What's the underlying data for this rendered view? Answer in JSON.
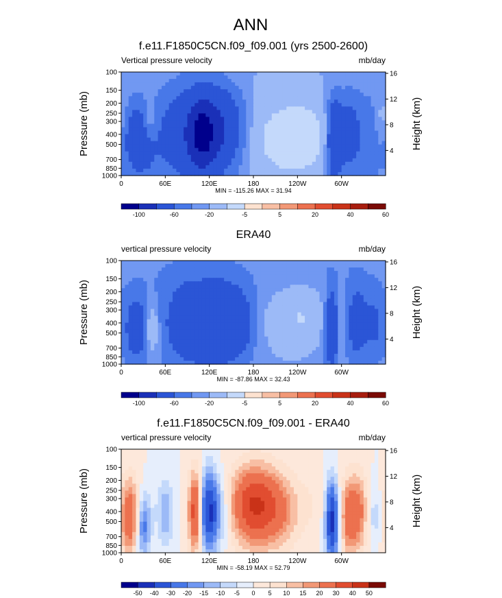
{
  "page_title": "ANN",
  "chart_data": [
    {
      "type": "heatmap",
      "title": "f.e11.F1850C5CN.f09_f09.001 (yrs 2500-2600)",
      "subtitle_left": "Vertical pressure velocity",
      "subtitle_right": "mb/day",
      "ylabel": "Pressure (mb)",
      "ylabel_right": "Height (km)",
      "x_ticks": [
        "0",
        "60E",
        "120E",
        "180",
        "120W",
        "60W"
      ],
      "y_ticks": [
        "100",
        "150",
        "200",
        "250",
        "300",
        "400",
        "500",
        "700",
        "850",
        "1000"
      ],
      "y_right_ticks": [
        "16",
        "12",
        "8",
        "4"
      ],
      "stats": "MIN = -115.26  MAX =  31.94",
      "colorbar_labels": [
        "-100",
        "-60",
        "-20",
        "-5",
        "5",
        "20",
        "40",
        "60"
      ],
      "colorbar_colors": [
        "#00008c",
        "#1a30b8",
        "#2b55d6",
        "#4878e8",
        "#7198f2",
        "#9cbaf7",
        "#c4d9fb",
        "#fde2d0",
        "#f8bfa4",
        "#f29876",
        "#ec714f",
        "#e14d30",
        "#c93218",
        "#a81d0e",
        "#7a0a05"
      ],
      "features": [
        {
          "lon": 25,
          "p": 450,
          "v": -50,
          "w": 14,
          "h": 0.5
        },
        {
          "lon": 38,
          "p": 320,
          "v": 28,
          "w": 8,
          "h": 0.35
        },
        {
          "lon": 95,
          "p": 400,
          "v": -50,
          "w": 30,
          "h": 0.7
        },
        {
          "lon": 110,
          "p": 400,
          "v": -70,
          "w": 12,
          "h": 0.6
        },
        {
          "lon": 135,
          "p": 350,
          "v": -45,
          "w": 16,
          "h": 0.6
        },
        {
          "lon": 160,
          "p": 350,
          "v": -12,
          "w": 14,
          "h": 0.6
        },
        {
          "lon": 225,
          "p": 450,
          "v": 28,
          "w": 40,
          "h": 0.7
        },
        {
          "lon": 255,
          "p": 400,
          "v": 10,
          "w": 25,
          "h": 0.6
        },
        {
          "lon": 290,
          "p": 450,
          "v": -60,
          "w": 7,
          "h": 0.6
        },
        {
          "lon": 310,
          "p": 400,
          "v": -35,
          "w": 12,
          "h": 0.6
        },
        {
          "lon": 340,
          "p": 420,
          "v": -15,
          "w": 12,
          "h": 0.6
        },
        {
          "lon": 355,
          "p": 300,
          "v": 15,
          "w": 8,
          "h": 0.4
        },
        {
          "lon": 180,
          "p": 120,
          "v": 4,
          "w": 120,
          "h": 0.25
        }
      ]
    },
    {
      "type": "heatmap",
      "title": "ERA40",
      "subtitle_left": "vertical pressure velocity",
      "subtitle_right": "mb/day",
      "ylabel": "Pressure (mb)",
      "ylabel_right": "Height (km)",
      "x_ticks": [
        "0",
        "60E",
        "120E",
        "180",
        "120W",
        "60W"
      ],
      "y_ticks": [
        "100",
        "150",
        "200",
        "250",
        "300",
        "400",
        "500",
        "700",
        "850",
        "1000"
      ],
      "y_right_ticks": [
        "16",
        "12",
        "8",
        "4"
      ],
      "stats": "MIN = -87.86  MAX =  32.43",
      "colorbar_labels": [
        "-100",
        "-60",
        "-20",
        "-5",
        "5",
        "20",
        "40",
        "60"
      ],
      "colorbar_colors": [
        "#00008c",
        "#1a30b8",
        "#2b55d6",
        "#4878e8",
        "#7198f2",
        "#9cbaf7",
        "#c4d9fb",
        "#fde2d0",
        "#f8bfa4",
        "#f29876",
        "#ec714f",
        "#e14d30",
        "#c93218",
        "#a81d0e",
        "#7a0a05"
      ],
      "features": [
        {
          "lon": 20,
          "p": 450,
          "v": -40,
          "w": 10,
          "h": 0.5
        },
        {
          "lon": 42,
          "p": 450,
          "v": 25,
          "w": 7,
          "h": 0.4
        },
        {
          "lon": 95,
          "p": 400,
          "v": -40,
          "w": 28,
          "h": 0.7
        },
        {
          "lon": 140,
          "p": 400,
          "v": -45,
          "w": 20,
          "h": 0.6
        },
        {
          "lon": 165,
          "p": 400,
          "v": -20,
          "w": 12,
          "h": 0.5
        },
        {
          "lon": 220,
          "p": 400,
          "v": 10,
          "w": 25,
          "h": 0.6
        },
        {
          "lon": 250,
          "p": 350,
          "v": 15,
          "w": 20,
          "h": 0.5
        },
        {
          "lon": 287,
          "p": 450,
          "v": -55,
          "w": 6,
          "h": 0.6
        },
        {
          "lon": 300,
          "p": 400,
          "v": 15,
          "w": 6,
          "h": 0.5
        },
        {
          "lon": 320,
          "p": 400,
          "v": -35,
          "w": 10,
          "h": 0.6
        },
        {
          "lon": 345,
          "p": 400,
          "v": -25,
          "w": 10,
          "h": 0.5
        },
        {
          "lon": 180,
          "p": 150,
          "v": -3,
          "w": 150,
          "h": 0.3
        }
      ]
    },
    {
      "type": "heatmap",
      "title": "f.e11.F1850C5CN.f09_f09.001 - ERA40",
      "subtitle_left": "vertical pressure velocity",
      "subtitle_right": "mb/day",
      "ylabel": "Pressure (mb)",
      "ylabel_right": "Height (km)",
      "x_ticks": [
        "0",
        "60E",
        "120E",
        "180",
        "120W",
        "60W"
      ],
      "y_ticks": [
        "100",
        "150",
        "200",
        "250",
        "300",
        "400",
        "500",
        "700",
        "850",
        "1000"
      ],
      "y_right_ticks": [
        "16",
        "12",
        "8",
        "4"
      ],
      "stats": "MIN = -58.19  MAX =  52.79",
      "colorbar_labels": [
        "-50",
        "-40",
        "-30",
        "-20",
        "-15",
        "-10",
        "-5",
        "0",
        "5",
        "10",
        "15",
        "20",
        "30",
        "40",
        "50"
      ],
      "colorbar_colors": [
        "#00008c",
        "#1a30b8",
        "#2b55d6",
        "#4878e8",
        "#7198f2",
        "#9cbaf7",
        "#c4d9fb",
        "#e6eefc",
        "#fde8db",
        "#fde2d0",
        "#f8bfa4",
        "#f29876",
        "#ec714f",
        "#e14d30",
        "#c93218",
        "#7a0a05"
      ],
      "features": [
        {
          "lon": 12,
          "p": 450,
          "v": 28,
          "w": 10,
          "h": 0.6
        },
        {
          "lon": 30,
          "p": 550,
          "v": -25,
          "w": 7,
          "h": 0.5
        },
        {
          "lon": 60,
          "p": 400,
          "v": -15,
          "w": 8,
          "h": 0.5
        },
        {
          "lon": 100,
          "p": 400,
          "v": 35,
          "w": 6,
          "h": 0.6
        },
        {
          "lon": 120,
          "p": 400,
          "v": -40,
          "w": 8,
          "h": 0.6
        },
        {
          "lon": 135,
          "p": 400,
          "v": -12,
          "w": 10,
          "h": 0.5
        },
        {
          "lon": 180,
          "p": 350,
          "v": 40,
          "w": 22,
          "h": 0.6
        },
        {
          "lon": 215,
          "p": 400,
          "v": 15,
          "w": 18,
          "h": 0.6
        },
        {
          "lon": 250,
          "p": 350,
          "v": 5,
          "w": 20,
          "h": 0.5
        },
        {
          "lon": 287,
          "p": 500,
          "v": -45,
          "w": 6,
          "h": 0.6
        },
        {
          "lon": 310,
          "p": 450,
          "v": 25,
          "w": 8,
          "h": 0.6
        },
        {
          "lon": 325,
          "p": 400,
          "v": 20,
          "w": 8,
          "h": 0.6
        },
        {
          "lon": 345,
          "p": 450,
          "v": -8,
          "w": 8,
          "h": 0.5
        }
      ]
    }
  ]
}
